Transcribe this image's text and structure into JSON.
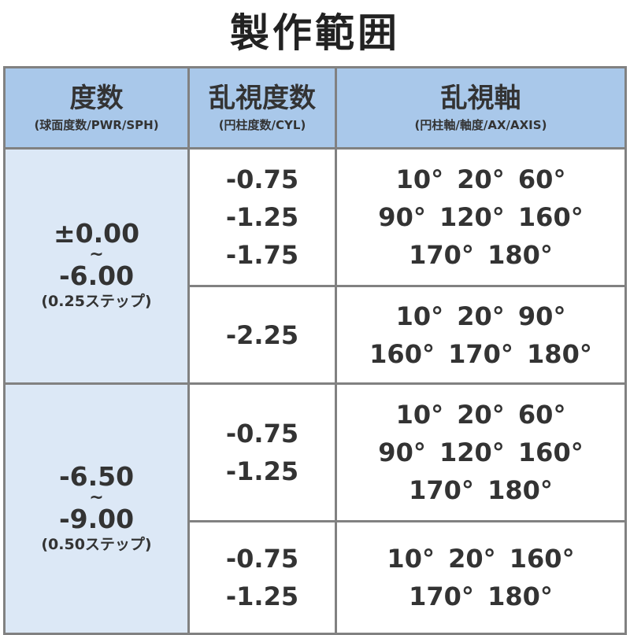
{
  "title": "製作範囲",
  "header": [
    {
      "main": "度数",
      "sub": "(球面度数/PWR/SPH)"
    },
    {
      "main": "乱視度数",
      "sub": "(円柱度数/CYL)"
    },
    {
      "main": "乱視軸",
      "sub": "(円柱軸/軸度/AX/AXIS)"
    }
  ],
  "groups": [
    {
      "from": "±0.00",
      "tilde": "~",
      "to": "-6.00",
      "step": "(0.25ステップ)",
      "rows": [
        {
          "cyl": [
            "-0.75",
            "-1.25",
            "-1.75"
          ],
          "axis": [
            "10°  20°  60°",
            "90°  120°  160°",
            "170°  180°"
          ]
        },
        {
          "cyl": [
            "-2.25"
          ],
          "axis": [
            "10°  20°  90°",
            "160°  170°  180°"
          ]
        }
      ]
    },
    {
      "from": "-6.50",
      "tilde": "~",
      "to": "-9.00",
      "step": "(0.50ステップ)",
      "rows": [
        {
          "cyl": [
            "-0.75",
            "-1.25"
          ],
          "axis": [
            "10°  20°  60°",
            "90°  120°  160°",
            "170°  180°"
          ]
        },
        {
          "cyl": [
            "-0.75",
            "-1.25"
          ],
          "axis": [
            "10°  20°  160°",
            "170°  180°"
          ]
        }
      ]
    }
  ],
  "colors": {
    "header_bg": "#a9c8ea",
    "power_col_bg": "#dce8f6",
    "border": "#818181",
    "text": "#333333"
  }
}
